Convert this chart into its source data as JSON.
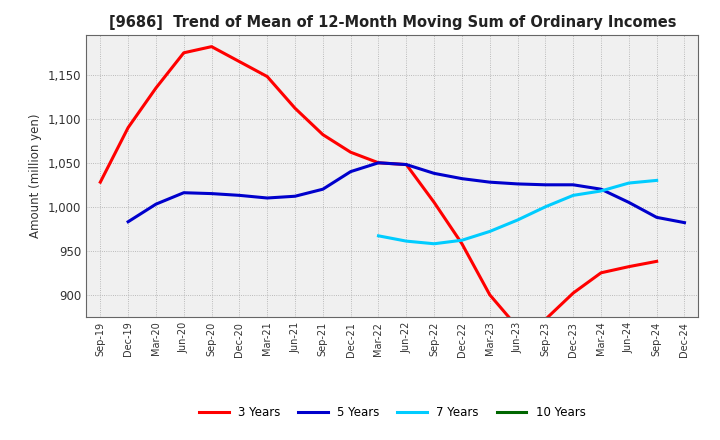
{
  "title": "[9686]  Trend of Mean of 12-Month Moving Sum of Ordinary Incomes",
  "ylabel": "Amount (million yen)",
  "background_color": "#ffffff",
  "plot_bg_color": "#f0f0f0",
  "ylim": [
    875,
    1195
  ],
  "yticks": [
    900,
    950,
    1000,
    1050,
    1100,
    1150
  ],
  "x_labels": [
    "Sep-19",
    "Dec-19",
    "Mar-20",
    "Jun-20",
    "Sep-20",
    "Dec-20",
    "Mar-21",
    "Jun-21",
    "Sep-21",
    "Dec-21",
    "Mar-22",
    "Jun-22",
    "Sep-22",
    "Dec-22",
    "Mar-23",
    "Jun-23",
    "Sep-23",
    "Dec-23",
    "Mar-24",
    "Jun-24",
    "Sep-24",
    "Dec-24"
  ],
  "series": {
    "3 Years": {
      "color": "#ff0000",
      "values": [
        1028,
        1090,
        1135,
        1175,
        1182,
        1165,
        1148,
        1112,
        1082,
        1062,
        1050,
        1048,
        1005,
        958,
        900,
        863,
        872,
        902,
        925,
        932,
        938,
        null
      ]
    },
    "5 Years": {
      "color": "#0000cc",
      "values": [
        null,
        983,
        1003,
        1016,
        1015,
        1013,
        1010,
        1012,
        1020,
        1040,
        1050,
        1048,
        1038,
        1032,
        1028,
        1026,
        1025,
        1025,
        1020,
        1005,
        988,
        982
      ]
    },
    "7 Years": {
      "color": "#00ccff",
      "values": [
        null,
        null,
        null,
        null,
        null,
        null,
        null,
        null,
        null,
        null,
        967,
        961,
        958,
        962,
        972,
        985,
        1000,
        1013,
        1018,
        1027,
        1030,
        null
      ]
    },
    "10 Years": {
      "color": "#006600",
      "values": [
        null,
        null,
        null,
        null,
        null,
        null,
        null,
        null,
        null,
        null,
        null,
        null,
        null,
        null,
        null,
        null,
        null,
        null,
        null,
        null,
        null,
        null
      ]
    }
  }
}
